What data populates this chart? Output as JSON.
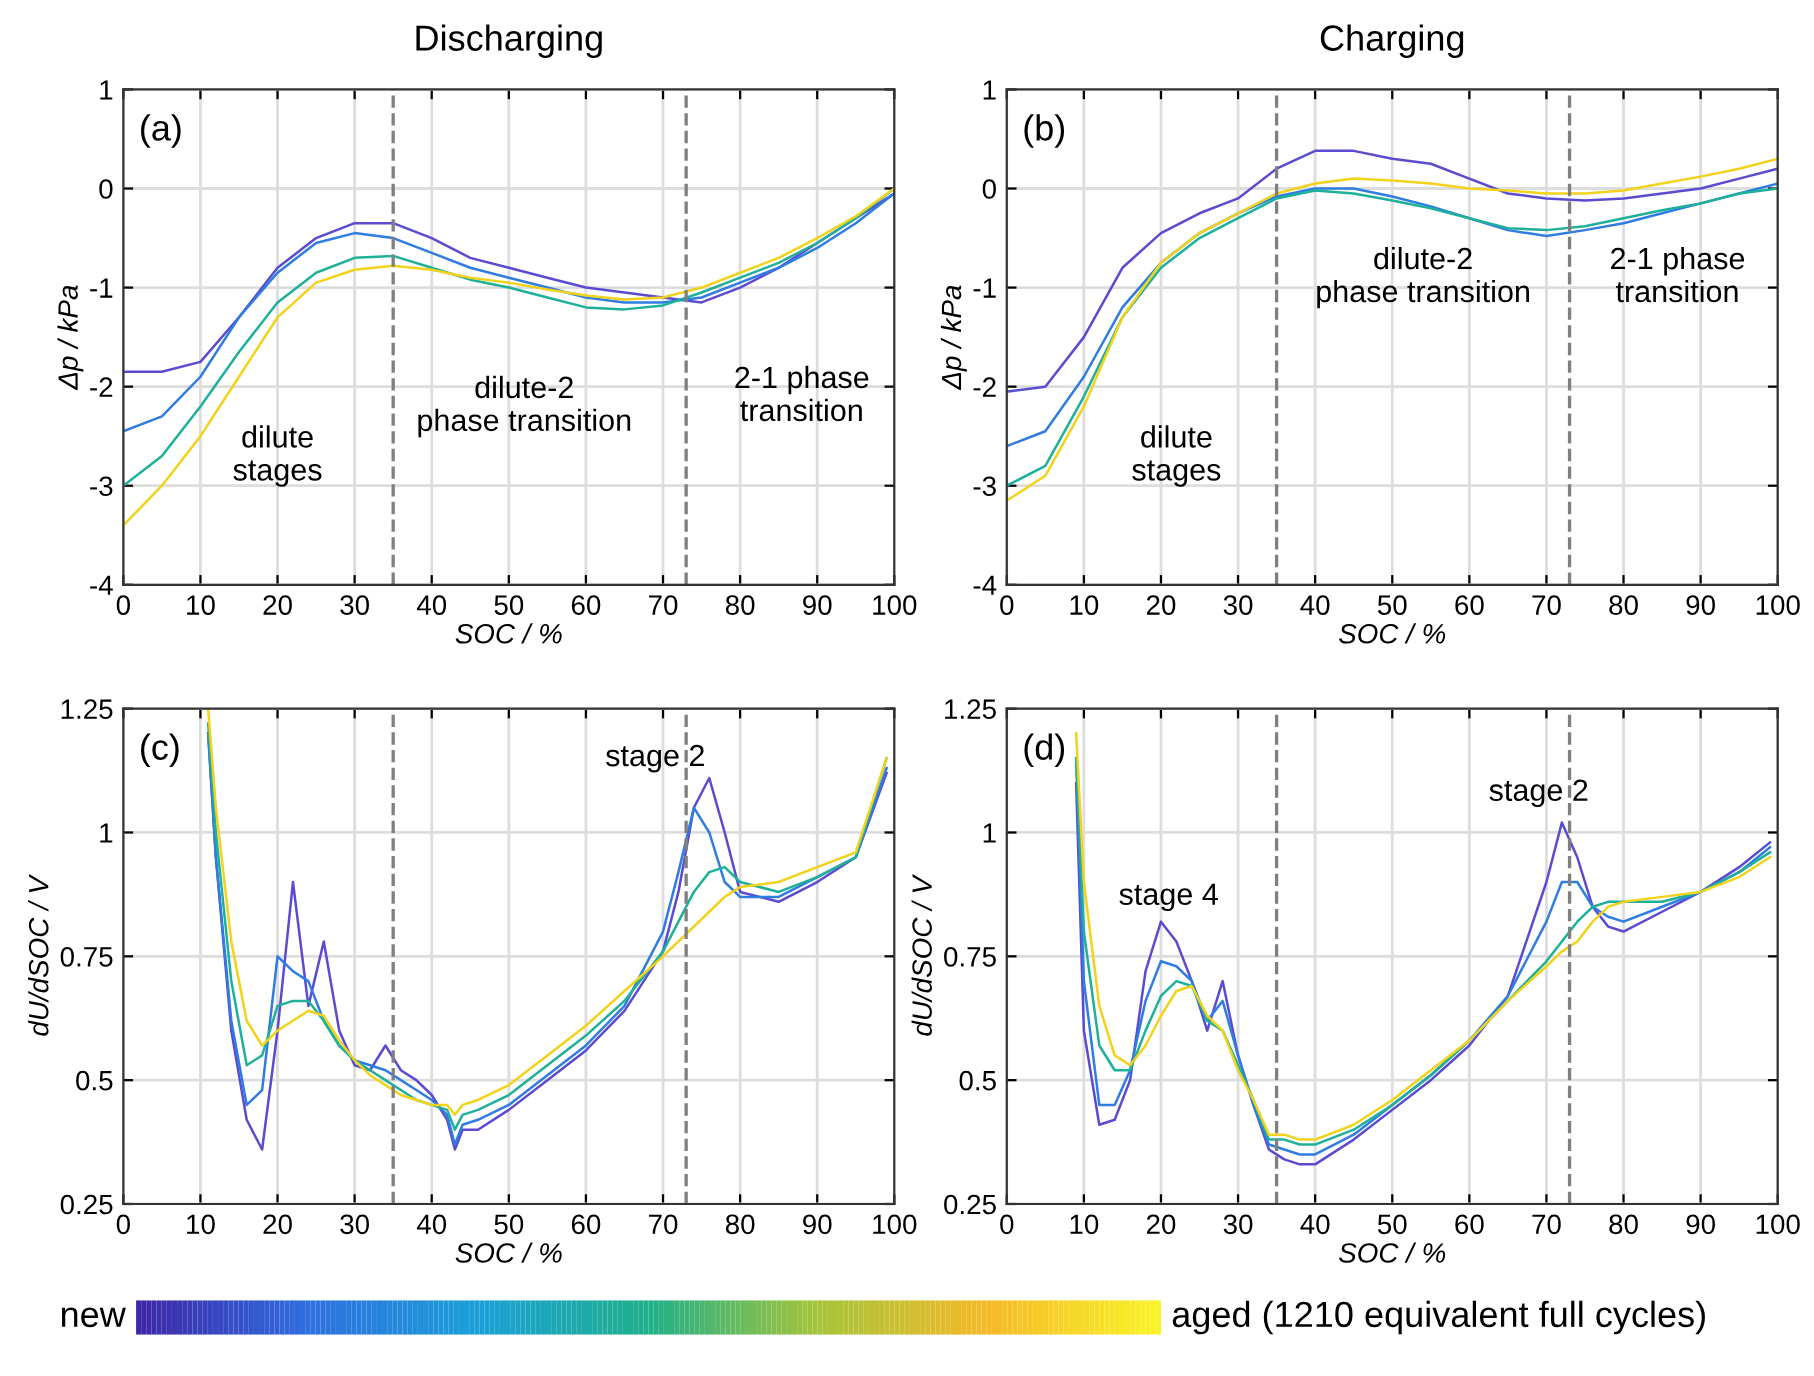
{
  "chart_data": [
    {
      "type": "line",
      "title": "Discharging",
      "xlabel": "SOC / %",
      "ylabel": "Δp / kPa",
      "xlim": [
        0,
        100
      ],
      "ylim": [
        -4,
        1
      ],
      "xticks": [
        0,
        10,
        20,
        30,
        40,
        50,
        60,
        70,
        80,
        90,
        100
      ],
      "yticks": [
        -4,
        -3,
        -2,
        -1,
        0,
        1
      ],
      "grid": true,
      "line_style": "solid",
      "x": [
        0,
        5,
        10,
        15,
        20,
        25,
        30,
        35,
        40,
        45,
        50,
        55,
        60,
        65,
        70,
        75,
        80,
        85,
        90,
        95,
        100
      ],
      "ref_lines": [
        {
          "axis": "x",
          "value": 35,
          "color": "#808080",
          "line_style": "dashed"
        },
        {
          "axis": "x",
          "value": 73,
          "color": "#808080",
          "line_style": "dashed"
        }
      ],
      "annotations": [
        "(a)",
        "dilute\nstages",
        "dilute-2\nphase transition",
        "2-1 phase\ntransition"
      ],
      "series": [
        {
          "color": "#5a4bd0",
          "values": [
            -1.85,
            -1.85,
            -1.75,
            -1.3,
            -0.8,
            -0.5,
            -0.35,
            -0.35,
            -0.5,
            -0.7,
            -0.8,
            -0.9,
            -1.0,
            -1.05,
            -1.1,
            -1.15,
            -1.0,
            -0.8,
            -0.55,
            -0.3,
            -0.05
          ]
        },
        {
          "color": "#2f7de0",
          "values": [
            -2.45,
            -2.3,
            -1.9,
            -1.3,
            -0.85,
            -0.55,
            -0.45,
            -0.5,
            -0.65,
            -0.8,
            -0.9,
            -1.0,
            -1.1,
            -1.15,
            -1.15,
            -1.1,
            -0.95,
            -0.8,
            -0.6,
            -0.35,
            -0.05
          ]
        },
        {
          "color": "#1fb09a",
          "values": [
            -3.0,
            -2.7,
            -2.2,
            -1.65,
            -1.15,
            -0.85,
            -0.7,
            -0.68,
            -0.8,
            -0.92,
            -1.0,
            -1.1,
            -1.2,
            -1.22,
            -1.18,
            -1.05,
            -0.9,
            -0.75,
            -0.55,
            -0.3,
            0.0
          ]
        },
        {
          "color": "#f2d21a",
          "values": [
            -3.4,
            -3.0,
            -2.5,
            -1.9,
            -1.3,
            -0.95,
            -0.82,
            -0.78,
            -0.82,
            -0.9,
            -0.95,
            -1.02,
            -1.08,
            -1.12,
            -1.1,
            -1.0,
            -0.85,
            -0.7,
            -0.5,
            -0.28,
            0.0
          ]
        }
      ]
    },
    {
      "type": "line",
      "title": "Charging",
      "xlabel": "SOC / %",
      "ylabel": "Δp / kPa",
      "xlim": [
        0,
        100
      ],
      "ylim": [
        -4,
        1
      ],
      "xticks": [
        0,
        10,
        20,
        30,
        40,
        50,
        60,
        70,
        80,
        90,
        100
      ],
      "yticks": [
        -4,
        -3,
        -2,
        -1,
        0,
        1
      ],
      "grid": true,
      "line_style": "solid",
      "x": [
        0,
        5,
        10,
        15,
        20,
        25,
        30,
        35,
        40,
        45,
        50,
        55,
        60,
        65,
        70,
        75,
        80,
        85,
        90,
        95,
        100
      ],
      "ref_lines": [
        {
          "axis": "x",
          "value": 35,
          "color": "#808080",
          "line_style": "dashed"
        },
        {
          "axis": "x",
          "value": 73,
          "color": "#808080",
          "line_style": "dashed"
        }
      ],
      "annotations": [
        "(b)",
        "dilute\nstages",
        "dilute-2\nphase transition",
        "2-1 phase\ntransition"
      ],
      "series": [
        {
          "color": "#5a4bd0",
          "values": [
            -2.05,
            -2.0,
            -1.5,
            -0.8,
            -0.45,
            -0.25,
            -0.1,
            0.2,
            0.38,
            0.38,
            0.3,
            0.25,
            0.1,
            -0.05,
            -0.1,
            -0.12,
            -0.1,
            -0.05,
            0.0,
            0.1,
            0.2
          ]
        },
        {
          "color": "#2f7de0",
          "values": [
            -2.6,
            -2.45,
            -1.9,
            -1.2,
            -0.75,
            -0.45,
            -0.25,
            -0.08,
            0.0,
            0.0,
            -0.08,
            -0.18,
            -0.3,
            -0.42,
            -0.48,
            -0.42,
            -0.35,
            -0.25,
            -0.15,
            -0.05,
            0.05
          ]
        },
        {
          "color": "#1fb09a",
          "values": [
            -3.0,
            -2.8,
            -2.1,
            -1.3,
            -0.8,
            -0.5,
            -0.3,
            -0.1,
            -0.02,
            -0.05,
            -0.12,
            -0.2,
            -0.3,
            -0.4,
            -0.42,
            -0.38,
            -0.3,
            -0.22,
            -0.15,
            -0.05,
            0.0
          ]
        },
        {
          "color": "#f2d21a",
          "values": [
            -3.15,
            -2.9,
            -2.2,
            -1.3,
            -0.75,
            -0.45,
            -0.25,
            -0.05,
            0.05,
            0.1,
            0.08,
            0.05,
            0.0,
            -0.02,
            -0.05,
            -0.05,
            -0.02,
            0.05,
            0.12,
            0.2,
            0.3
          ]
        }
      ]
    },
    {
      "type": "line",
      "xlabel": "SOC / %",
      "ylabel": "dU/dSOC / V",
      "xlim": [
        0,
        100
      ],
      "ylim": [
        0.25,
        1.25
      ],
      "xticks": [
        0,
        10,
        20,
        30,
        40,
        50,
        60,
        70,
        80,
        90,
        100
      ],
      "yticks": [
        0.25,
        0.5,
        0.75,
        1,
        1.25
      ],
      "grid": true,
      "line_style": "solid",
      "x": [
        11,
        12,
        14,
        16,
        18,
        20,
        22,
        24,
        26,
        28,
        30,
        32,
        34,
        36,
        38,
        40,
        42,
        43,
        44,
        46,
        50,
        55,
        60,
        65,
        70,
        72,
        74,
        76,
        78,
        80,
        85,
        90,
        95,
        99
      ],
      "ref_lines": [
        {
          "axis": "x",
          "value": 35,
          "color": "#808080",
          "line_style": "dashed"
        },
        {
          "axis": "x",
          "value": 73,
          "color": "#808080",
          "line_style": "dashed"
        }
      ],
      "annotations": [
        "(c)",
        "stage 2"
      ],
      "series": [
        {
          "color": "#5a4bd0",
          "values": [
            1.2,
            0.95,
            0.6,
            0.42,
            0.36,
            0.6,
            0.9,
            0.65,
            0.78,
            0.6,
            0.53,
            0.52,
            0.57,
            0.52,
            0.5,
            0.47,
            0.42,
            0.36,
            0.4,
            0.4,
            0.44,
            0.5,
            0.56,
            0.64,
            0.76,
            0.88,
            1.05,
            1.11,
            1.0,
            0.88,
            0.86,
            0.9,
            0.95,
            1.12
          ]
        },
        {
          "color": "#2f7de0",
          "values": [
            1.2,
            0.95,
            0.62,
            0.45,
            0.48,
            0.75,
            0.72,
            0.7,
            0.62,
            0.57,
            0.54,
            0.53,
            0.52,
            0.5,
            0.48,
            0.46,
            0.43,
            0.37,
            0.41,
            0.42,
            0.45,
            0.51,
            0.57,
            0.65,
            0.8,
            0.92,
            1.05,
            1.0,
            0.9,
            0.87,
            0.87,
            0.91,
            0.95,
            1.13
          ]
        },
        {
          "color": "#1fb09a",
          "values": [
            1.22,
            1.0,
            0.7,
            0.53,
            0.55,
            0.65,
            0.66,
            0.66,
            0.62,
            0.57,
            0.54,
            0.52,
            0.5,
            0.48,
            0.46,
            0.45,
            0.44,
            0.4,
            0.43,
            0.44,
            0.47,
            0.53,
            0.59,
            0.66,
            0.76,
            0.82,
            0.88,
            0.92,
            0.93,
            0.9,
            0.88,
            0.91,
            0.95,
            1.15
          ]
        },
        {
          "color": "#f2d21a",
          "values": [
            1.25,
            1.05,
            0.78,
            0.62,
            0.57,
            0.6,
            0.62,
            0.64,
            0.63,
            0.58,
            0.54,
            0.51,
            0.49,
            0.47,
            0.46,
            0.45,
            0.45,
            0.43,
            0.45,
            0.46,
            0.49,
            0.55,
            0.61,
            0.68,
            0.75,
            0.78,
            0.81,
            0.84,
            0.87,
            0.89,
            0.9,
            0.93,
            0.96,
            1.15
          ]
        }
      ]
    },
    {
      "type": "line",
      "xlabel": "SOC / %",
      "ylabel": "dU/dSOC / V",
      "xlim": [
        0,
        100
      ],
      "ylim": [
        0.25,
        1.25
      ],
      "xticks": [
        0,
        10,
        20,
        30,
        40,
        50,
        60,
        70,
        80,
        90,
        100
      ],
      "yticks": [
        0.25,
        0.5,
        0.75,
        1,
        1.25
      ],
      "grid": true,
      "line_style": "solid",
      "x": [
        9,
        10,
        12,
        14,
        16,
        18,
        20,
        22,
        24,
        26,
        28,
        30,
        32,
        34,
        36,
        38,
        40,
        45,
        50,
        55,
        60,
        65,
        70,
        72,
        74,
        76,
        78,
        80,
        85,
        90,
        95,
        99
      ],
      "ref_lines": [
        {
          "axis": "x",
          "value": 35,
          "color": "#808080",
          "line_style": "dashed"
        },
        {
          "axis": "x",
          "value": 73,
          "color": "#808080",
          "line_style": "dashed"
        }
      ],
      "annotations": [
        "(d)",
        "stage 4",
        "stage 2"
      ],
      "series": [
        {
          "color": "#5a4bd0",
          "values": [
            1.1,
            0.6,
            0.41,
            0.42,
            0.5,
            0.72,
            0.82,
            0.78,
            0.7,
            0.6,
            0.7,
            0.55,
            0.45,
            0.36,
            0.34,
            0.33,
            0.33,
            0.38,
            0.44,
            0.5,
            0.57,
            0.67,
            0.9,
            1.02,
            0.95,
            0.85,
            0.81,
            0.8,
            0.84,
            0.88,
            0.93,
            0.98
          ]
        },
        {
          "color": "#2f7de0",
          "values": [
            1.15,
            0.7,
            0.45,
            0.45,
            0.52,
            0.66,
            0.74,
            0.73,
            0.7,
            0.62,
            0.66,
            0.55,
            0.45,
            0.37,
            0.36,
            0.35,
            0.35,
            0.39,
            0.45,
            0.51,
            0.58,
            0.67,
            0.82,
            0.9,
            0.9,
            0.85,
            0.83,
            0.82,
            0.85,
            0.88,
            0.92,
            0.97
          ]
        },
        {
          "color": "#1fb09a",
          "values": [
            1.15,
            0.8,
            0.57,
            0.52,
            0.52,
            0.6,
            0.67,
            0.7,
            0.69,
            0.62,
            0.6,
            0.53,
            0.46,
            0.38,
            0.38,
            0.37,
            0.37,
            0.4,
            0.45,
            0.51,
            0.58,
            0.66,
            0.74,
            0.78,
            0.82,
            0.85,
            0.86,
            0.86,
            0.86,
            0.88,
            0.92,
            0.96
          ]
        },
        {
          "color": "#f2d21a",
          "values": [
            1.2,
            0.9,
            0.65,
            0.55,
            0.53,
            0.57,
            0.63,
            0.68,
            0.69,
            0.63,
            0.6,
            0.52,
            0.46,
            0.39,
            0.39,
            0.38,
            0.38,
            0.41,
            0.46,
            0.52,
            0.58,
            0.66,
            0.73,
            0.76,
            0.78,
            0.82,
            0.85,
            0.86,
            0.87,
            0.88,
            0.91,
            0.95
          ]
        }
      ]
    },
    {
      "type": "other",
      "annotations": [
        "new",
        "aged (1210 equivalent full cycles)"
      ],
      "colors": [
        "#3e26a8",
        "#2f6fe0",
        "#1aa0d8",
        "#20b08a",
        "#a6c43a",
        "#f5b928",
        "#f9f326"
      ]
    }
  ]
}
